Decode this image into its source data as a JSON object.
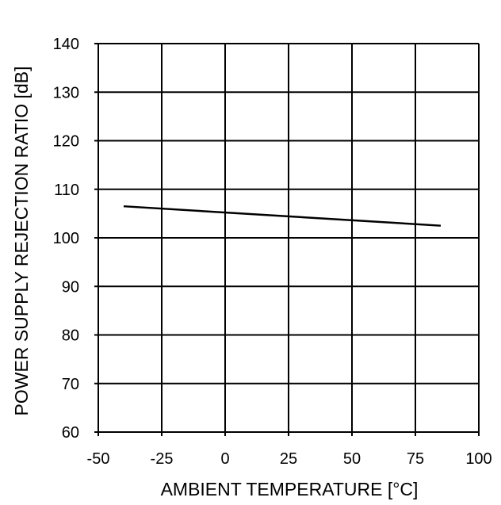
{
  "chart_data": {
    "type": "line",
    "xlabel": "AMBIENT TEMPERATURE [°C]",
    "ylabel": "POWER SUPPLY REJECTION RATIO [dB]",
    "xlim": [
      -50,
      100
    ],
    "ylim": [
      60,
      140
    ],
    "x_ticks": [
      "-50",
      "-25",
      "0",
      "25",
      "50",
      "75",
      "100"
    ],
    "y_ticks": [
      "60",
      "70",
      "80",
      "90",
      "100",
      "110",
      "120",
      "130",
      "140"
    ],
    "grid": true,
    "series": [
      {
        "x": [
          -40,
          85
        ],
        "y": [
          106.5,
          102.5
        ],
        "color": "#000000"
      }
    ]
  }
}
